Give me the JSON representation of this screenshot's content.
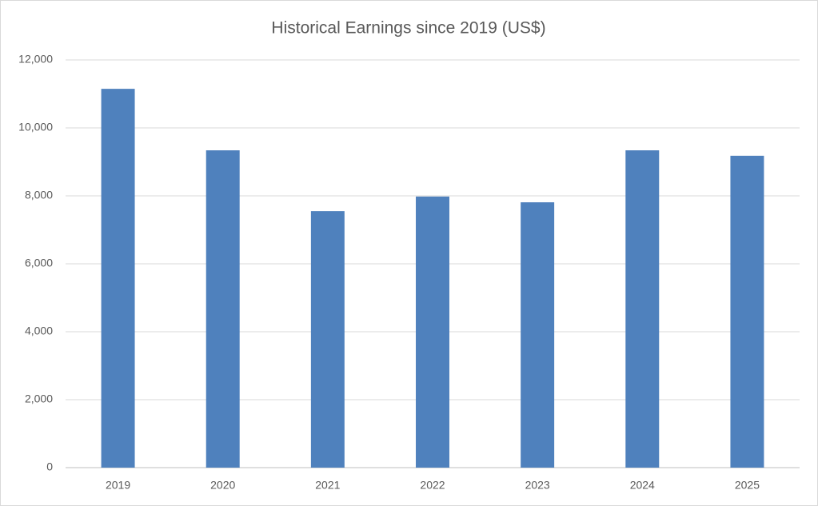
{
  "chart_data": {
    "type": "bar",
    "title": "Historical Earnings since 2019 (US$)",
    "categories": [
      "2019",
      "2020",
      "2021",
      "2022",
      "2023",
      "2024",
      "2025"
    ],
    "values": [
      11150,
      9340,
      7550,
      7980,
      7810,
      9340,
      9180
    ],
    "color": "#4f81bd",
    "ylim": [
      0,
      12000
    ],
    "yticks": [
      0,
      {
        "value": 2000,
        "label": "2,000"
      },
      {
        "value": 4000,
        "label": "4,000"
      },
      {
        "value": 6000,
        "label": "6,000"
      },
      {
        "value": 8000,
        "label": "8,000"
      },
      {
        "value": 10000,
        "label": "10,000"
      },
      {
        "value": 12000,
        "label": "12,000"
      }
    ],
    "grid": true
  }
}
